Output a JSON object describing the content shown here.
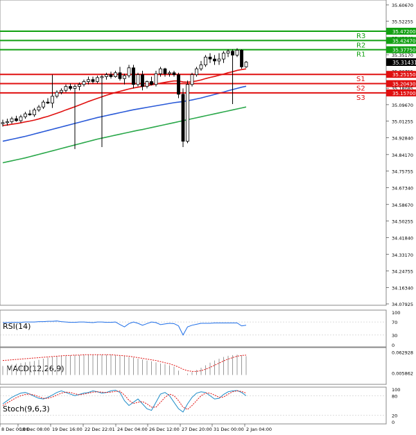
{
  "chart_data": [
    {
      "type": "candlestick",
      "panel": "price",
      "ylim": [
        34.07925,
        35.6067
      ],
      "y_ticks": [
        "35.60670",
        "35.52255",
        "35.43840",
        "35.35170",
        "35.26755",
        "35.18085",
        "35.09670",
        "35.01255",
        "34.92840",
        "34.84170",
        "34.75755",
        "34.67340",
        "34.58670",
        "34.50255",
        "34.41840",
        "34.33170",
        "34.24755",
        "34.16340",
        "34.07925"
      ],
      "x_ticks": [
        "8 Dec 00:00",
        "18 Dec 08:00",
        "19 Dec 16:00",
        "22 Dec 22:01",
        "24 Dec 04:00",
        "26 Dec 12:00",
        "27 Dec 20:00",
        "31 Dec 00:00",
        "2 Jan 04:00"
      ],
      "levels": [
        {
          "name": "R3",
          "value": 35.472,
          "label": "35.47200",
          "color": "#12a012"
        },
        {
          "name": "R2",
          "value": 35.4247,
          "label": "35.42470",
          "color": "#12a012"
        },
        {
          "name": "R1",
          "value": 35.3775,
          "label": "35.37750",
          "color": "#12a012"
        },
        {
          "name": "S1",
          "value": 35.2515,
          "label": "35.25150",
          "color": "#e01010"
        },
        {
          "name": "S2",
          "value": 35.2043,
          "label": "35.20430",
          "color": "#e01010"
        },
        {
          "name": "S3",
          "value": 35.157,
          "label": "35.15700",
          "color": "#e01010"
        }
      ],
      "current_price": {
        "value": 35.31431,
        "label": "35.31431"
      },
      "candles": [
        [
          35.0,
          35.02,
          34.985,
          35.005
        ],
        [
          35.005,
          35.025,
          34.99,
          35.01
        ],
        [
          35.01,
          35.035,
          35.0,
          35.025
        ],
        [
          35.025,
          35.04,
          35.01,
          35.015
        ],
        [
          35.015,
          35.045,
          35.005,
          35.035
        ],
        [
          35.035,
          35.06,
          35.025,
          35.05
        ],
        [
          35.05,
          35.07,
          35.04,
          35.045
        ],
        [
          35.045,
          35.08,
          35.035,
          35.07
        ],
        [
          35.07,
          35.095,
          35.06,
          35.085
        ],
        [
          35.085,
          35.12,
          35.075,
          35.11
        ],
        [
          35.11,
          35.13,
          35.1,
          35.105
        ],
        [
          35.105,
          35.25,
          35.08,
          35.14
        ],
        [
          35.14,
          35.17,
          35.13,
          35.16
        ],
        [
          35.16,
          35.18,
          35.15,
          35.17
        ],
        [
          35.17,
          35.2,
          35.16,
          35.19
        ],
        [
          35.19,
          35.205,
          35.17,
          35.18
        ],
        [
          35.18,
          35.2,
          34.87,
          35.19
        ],
        [
          35.19,
          35.21,
          35.17,
          35.2
        ],
        [
          35.2,
          35.225,
          35.19,
          35.215
        ],
        [
          35.215,
          35.24,
          35.2,
          35.225
        ],
        [
          35.225,
          35.24,
          35.205,
          35.215
        ],
        [
          35.215,
          35.245,
          35.205,
          35.235
        ],
        [
          35.235,
          35.25,
          34.88,
          35.24
        ],
        [
          35.24,
          35.26,
          35.225,
          35.25
        ],
        [
          35.25,
          35.265,
          35.23,
          35.24
        ],
        [
          35.24,
          35.27,
          35.235,
          35.26
        ],
        [
          35.26,
          35.29,
          35.22,
          35.23
        ],
        [
          35.23,
          35.255,
          35.2,
          35.245
        ],
        [
          35.245,
          35.3,
          35.235,
          35.285
        ],
        [
          35.285,
          35.3,
          35.18,
          35.2
        ],
        [
          35.2,
          35.26,
          35.19,
          35.25
        ],
        [
          35.25,
          35.27,
          35.17,
          35.19
        ],
        [
          35.19,
          35.22,
          35.18,
          35.215
        ],
        [
          35.215,
          35.24,
          35.195,
          35.2
        ],
        [
          35.2,
          35.27,
          35.19,
          35.255
        ],
        [
          35.255,
          35.29,
          35.24,
          35.28
        ],
        [
          35.28,
          35.285,
          35.24,
          35.255
        ],
        [
          35.255,
          35.27,
          35.24,
          35.26
        ],
        [
          35.26,
          35.27,
          35.24,
          35.25
        ],
        [
          35.25,
          35.26,
          35.13,
          35.15
        ],
        [
          35.15,
          35.18,
          34.88,
          34.91
        ],
        [
          34.91,
          35.22,
          34.9,
          35.2
        ],
        [
          35.2,
          35.26,
          35.19,
          35.25
        ],
        [
          35.25,
          35.29,
          35.24,
          35.28
        ],
        [
          35.28,
          35.32,
          35.27,
          35.3
        ],
        [
          35.3,
          35.35,
          35.29,
          35.34
        ],
        [
          35.34,
          35.36,
          35.31,
          35.33
        ],
        [
          35.33,
          35.35,
          35.3,
          35.32
        ],
        [
          35.32,
          35.36,
          35.3,
          35.33
        ],
        [
          35.33,
          35.37,
          35.31,
          35.36
        ],
        [
          35.36,
          35.38,
          35.34,
          35.37
        ],
        [
          35.37,
          35.38,
          35.1,
          35.35
        ],
        [
          35.35,
          35.385,
          35.34,
          35.375
        ],
        [
          35.375,
          35.38,
          35.28,
          35.29
        ],
        [
          35.29,
          35.32,
          35.285,
          35.314
        ]
      ],
      "ma_red": [
        34.99,
        34.993,
        34.997,
        35.0,
        35.004,
        35.009,
        35.013,
        35.018,
        35.024,
        35.031,
        35.037,
        35.045,
        35.053,
        35.061,
        35.07,
        35.078,
        35.086,
        35.095,
        35.104,
        35.113,
        35.121,
        35.129,
        35.137,
        35.145,
        35.152,
        35.159,
        35.165,
        35.171,
        35.177,
        35.182,
        35.186,
        35.19,
        35.194,
        35.198,
        35.202,
        35.207,
        35.211,
        35.215,
        35.218,
        35.218,
        35.213,
        35.212,
        35.214,
        35.218,
        35.223,
        35.23,
        35.236,
        35.241,
        35.247,
        35.253,
        35.26,
        35.265,
        35.272,
        35.276,
        35.28
      ],
      "ma_blue": [
        34.91,
        34.915,
        34.92,
        34.925,
        34.93,
        34.935,
        34.941,
        34.947,
        34.953,
        34.959,
        34.965,
        34.971,
        34.977,
        34.983,
        34.989,
        34.995,
        35.001,
        35.007,
        35.013,
        35.019,
        35.025,
        35.031,
        35.036,
        35.041,
        35.046,
        35.051,
        35.056,
        35.061,
        35.066,
        35.071,
        35.075,
        35.079,
        35.083,
        35.087,
        35.091,
        35.095,
        35.099,
        35.103,
        35.107,
        35.11,
        35.113,
        35.117,
        35.121,
        35.126,
        35.131,
        35.137,
        35.143,
        35.149,
        35.155,
        35.161,
        35.168,
        35.174,
        35.18,
        35.186,
        35.191
      ],
      "ma_green": [
        34.8,
        34.805,
        34.81,
        34.815,
        34.82,
        34.825,
        34.831,
        34.837,
        34.843,
        34.849,
        34.855,
        34.861,
        34.867,
        34.873,
        34.879,
        34.885,
        34.891,
        34.897,
        34.903,
        34.909,
        34.915,
        34.921,
        34.926,
        34.931,
        34.936,
        34.941,
        34.946,
        34.951,
        34.956,
        34.961,
        34.966,
        34.97,
        34.975,
        34.98,
        34.985,
        34.99,
        34.995,
        35.0,
        35.005,
        35.01,
        35.015,
        35.02,
        35.025,
        35.03,
        35.035,
        35.04,
        35.045,
        35.05,
        35.055,
        35.06,
        35.065,
        35.07,
        35.075,
        35.08,
        35.085
      ]
    },
    {
      "type": "line",
      "panel": "rsi",
      "title": "RSI(14)",
      "ylim": [
        0,
        100
      ],
      "y_ticks": [
        "100",
        "70",
        "30",
        "0"
      ],
      "values": [
        68,
        68,
        69,
        69,
        69,
        70,
        70,
        70,
        71,
        71,
        72,
        72,
        73,
        71,
        70,
        69,
        69,
        70,
        70,
        69,
        68,
        70,
        70,
        69,
        69,
        70,
        62,
        55,
        65,
        70,
        66,
        60,
        65,
        70,
        68,
        62,
        64,
        66,
        65,
        58,
        30,
        55,
        60,
        63,
        66,
        66,
        66,
        67,
        67,
        67,
        67,
        67,
        67,
        58,
        60
      ]
    },
    {
      "type": "bar",
      "panel": "macd",
      "title": "MACD(12,26,9)",
      "ylim": [
        -0.02,
        0.07
      ],
      "y_ticks": [
        "0.062928",
        "0.005862"
      ],
      "values": [
        0.025,
        0.027,
        0.029,
        0.031,
        0.033,
        0.035,
        0.037,
        0.039,
        0.042,
        0.045,
        0.048,
        0.05,
        0.052,
        0.053,
        0.054,
        0.054,
        0.055,
        0.055,
        0.056,
        0.056,
        0.056,
        0.056,
        0.056,
        0.056,
        0.056,
        0.055,
        0.054,
        0.052,
        0.05,
        0.048,
        0.045,
        0.043,
        0.04,
        0.038,
        0.035,
        0.032,
        0.03,
        0.027,
        0.023,
        0.012,
        0.0,
        0.004,
        0.008,
        0.014,
        0.02,
        0.027,
        0.034,
        0.04,
        0.045,
        0.05,
        0.053,
        0.055,
        0.056,
        0.054,
        0.052
      ],
      "signal": [
        0.04,
        0.041,
        0.042,
        0.043,
        0.044,
        0.045,
        0.046,
        0.047,
        0.048,
        0.049,
        0.05,
        0.051,
        0.052,
        0.053,
        0.054,
        0.054,
        0.055,
        0.055,
        0.056,
        0.056,
        0.056,
        0.056,
        0.056,
        0.056,
        0.056,
        0.055,
        0.054,
        0.053,
        0.052,
        0.05,
        0.048,
        0.046,
        0.044,
        0.042,
        0.04,
        0.037,
        0.034,
        0.031,
        0.027,
        0.022,
        0.016,
        0.012,
        0.01,
        0.01,
        0.012,
        0.016,
        0.021,
        0.027,
        0.033,
        0.039,
        0.044,
        0.048,
        0.052,
        0.054,
        0.055
      ]
    },
    {
      "type": "line",
      "panel": "stoch",
      "title": "Stoch(9,6,3)",
      "ylim": [
        0,
        100
      ],
      "y_ticks": [
        "100",
        "80",
        "20",
        "0"
      ],
      "main": [
        55,
        65,
        75,
        82,
        88,
        90,
        85,
        78,
        72,
        70,
        75,
        82,
        90,
        95,
        90,
        85,
        80,
        84,
        88,
        90,
        95,
        92,
        88,
        90,
        95,
        97,
        90,
        65,
        50,
        60,
        70,
        55,
        40,
        35,
        60,
        85,
        90,
        80,
        60,
        40,
        30,
        55,
        75,
        88,
        92,
        90,
        80,
        70,
        72,
        84,
        92,
        95,
        96,
        90,
        80
      ],
      "signal": [
        50,
        58,
        66,
        74,
        80,
        84,
        85,
        82,
        77,
        72,
        72,
        76,
        82,
        88,
        91,
        90,
        86,
        83,
        85,
        88,
        91,
        92,
        91,
        90,
        91,
        93,
        94,
        82,
        66,
        56,
        60,
        62,
        55,
        45,
        45,
        60,
        75,
        85,
        80,
        65,
        45,
        38,
        50,
        65,
        80,
        88,
        88,
        82,
        75,
        76,
        85,
        92,
        95,
        93,
        88
      ]
    }
  ]
}
